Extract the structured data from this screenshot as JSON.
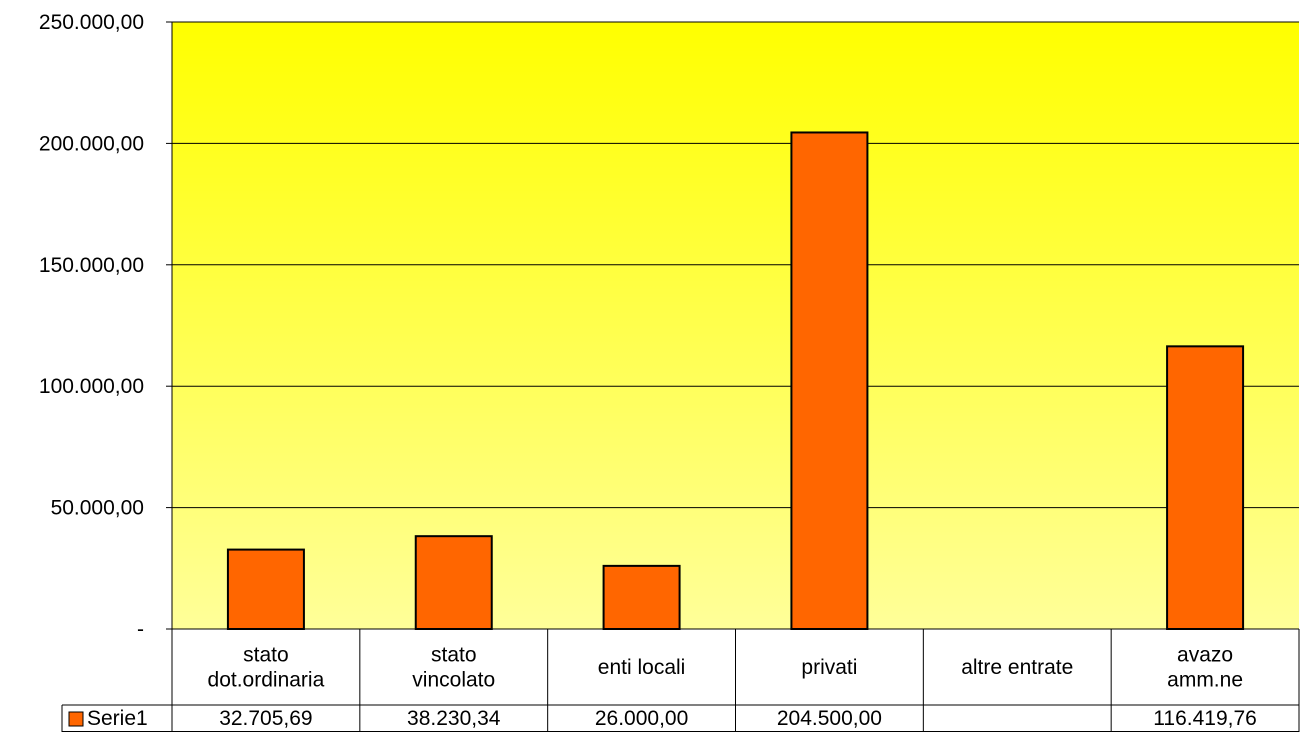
{
  "chart_data": {
    "type": "bar",
    "categories": [
      [
        "stato",
        "dot.ordinaria"
      ],
      [
        "stato",
        "vincolato"
      ],
      [
        "enti locali"
      ],
      [
        "privati"
      ],
      [
        "altre entrate"
      ],
      [
        "avazo",
        "amm.ne"
      ]
    ],
    "series": [
      {
        "name": "Serie1",
        "values": [
          32705.69,
          38230.34,
          26000.0,
          204500.0,
          null,
          116419.76
        ],
        "labels": [
          "32.705,69",
          "38.230,34",
          "26.000,00",
          "204.500,00",
          "",
          "116.419,76"
        ],
        "color": "#ff6600"
      }
    ],
    "ylim": [
      0,
      250000
    ],
    "yticks": [
      {
        "value": 0,
        "label": "-"
      },
      {
        "value": 50000,
        "label": "50.000,00"
      },
      {
        "value": 100000,
        "label": "100.000,00"
      },
      {
        "value": 150000,
        "label": "150.000,00"
      },
      {
        "value": 200000,
        "label": "200.000,00"
      },
      {
        "value": 250000,
        "label": "250.000,00"
      }
    ],
    "grid": true,
    "legend": "data-table",
    "plot_background": {
      "top": "#ffff00",
      "bottom": "#ffff99"
    },
    "bar_outline": "#000000"
  }
}
